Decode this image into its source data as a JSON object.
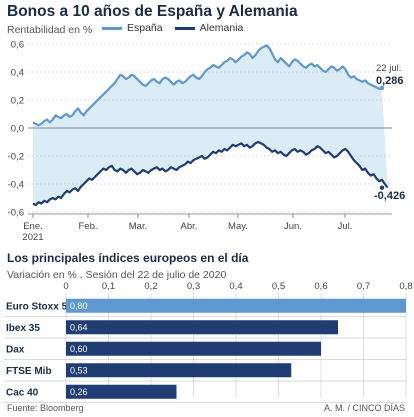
{
  "source": "Fuente: Bloomberg",
  "credit": "A. M. / CINCO DÍAS",
  "colors": {
    "espana": "#5f97d1",
    "alemania": "#1f3d73",
    "area": "#dcecf6",
    "bar_light": "#5f97d1",
    "bar_dark": "#1f3d73"
  },
  "chart_data": [
    {
      "type": "line",
      "title": "Bonos a 10 años de España y Alemania",
      "ylabel": "Rentabilidad en %",
      "ylim": [
        -0.6,
        0.6
      ],
      "yticks": [
        -0.6,
        -0.4,
        -0.2,
        0.0,
        0.2,
        0.4,
        0.6
      ],
      "ytick_labels": [
        "-0,6",
        "-0,4",
        "-0,2",
        "0,0",
        "0,2",
        "0,4",
        "0,6"
      ],
      "x_tick_labels": [
        "Ene.",
        "Feb.",
        "Mar.",
        "Abr.",
        "May.",
        "Jun.",
        "Jul."
      ],
      "x_year_label": "2021",
      "end_date_label": "22 jul.",
      "end_value_labels": {
        "espana": "0,286",
        "alemania": "-0,426"
      },
      "series": [
        {
          "name": "España",
          "values": [
            0.04,
            0.03,
            0.02,
            0.03,
            0.05,
            0.06,
            0.04,
            0.06,
            0.09,
            0.08,
            0.07,
            0.09,
            0.1,
            0.08,
            0.09,
            0.12,
            0.14,
            0.11,
            0.09,
            0.12,
            0.14,
            0.16,
            0.18,
            0.2,
            0.22,
            0.24,
            0.26,
            0.28,
            0.3,
            0.32,
            0.35,
            0.38,
            0.37,
            0.35,
            0.36,
            0.38,
            0.37,
            0.35,
            0.33,
            0.31,
            0.3,
            0.32,
            0.34,
            0.35,
            0.33,
            0.32,
            0.35,
            0.36,
            0.35,
            0.33,
            0.31,
            0.33,
            0.34,
            0.32,
            0.33,
            0.35,
            0.37,
            0.38,
            0.36,
            0.35,
            0.37,
            0.4,
            0.42,
            0.43,
            0.45,
            0.44,
            0.43,
            0.45,
            0.47,
            0.48,
            0.5,
            0.49,
            0.47,
            0.49,
            0.51,
            0.52,
            0.54,
            0.53,
            0.5,
            0.52,
            0.55,
            0.57,
            0.58,
            0.59,
            0.57,
            0.53,
            0.49,
            0.47,
            0.5,
            0.48,
            0.46,
            0.44,
            0.47,
            0.49,
            0.48,
            0.46,
            0.44,
            0.43,
            0.45,
            0.46,
            0.44,
            0.45,
            0.43,
            0.41,
            0.4,
            0.42,
            0.44,
            0.43,
            0.41,
            0.42,
            0.44,
            0.42,
            0.38,
            0.36,
            0.37,
            0.35,
            0.34,
            0.33,
            0.34,
            0.32,
            0.31,
            0.3,
            0.29,
            0.28,
            0.286
          ]
        },
        {
          "name": "Alemania",
          "values": [
            -0.54,
            -0.55,
            -0.53,
            -0.54,
            -0.52,
            -0.53,
            -0.51,
            -0.5,
            -0.51,
            -0.49,
            -0.5,
            -0.47,
            -0.45,
            -0.46,
            -0.44,
            -0.43,
            -0.45,
            -0.42,
            -0.4,
            -0.38,
            -0.36,
            -0.37,
            -0.35,
            -0.33,
            -0.31,
            -0.29,
            -0.3,
            -0.28,
            -0.27,
            -0.3,
            -0.31,
            -0.29,
            -0.3,
            -0.32,
            -0.3,
            -0.29,
            -0.31,
            -0.33,
            -0.32,
            -0.3,
            -0.31,
            -0.32,
            -0.3,
            -0.29,
            -0.28,
            -0.3,
            -0.29,
            -0.31,
            -0.3,
            -0.28,
            -0.29,
            -0.3,
            -0.28,
            -0.27,
            -0.26,
            -0.24,
            -0.25,
            -0.23,
            -0.22,
            -0.21,
            -0.2,
            -0.22,
            -0.21,
            -0.19,
            -0.17,
            -0.18,
            -0.16,
            -0.17,
            -0.15,
            -0.16,
            -0.14,
            -0.12,
            -0.13,
            -0.12,
            -0.11,
            -0.13,
            -0.12,
            -0.14,
            -0.13,
            -0.11,
            -0.1,
            -0.11,
            -0.12,
            -0.14,
            -0.15,
            -0.17,
            -0.16,
            -0.18,
            -0.17,
            -0.19,
            -0.2,
            -0.18,
            -0.16,
            -0.15,
            -0.17,
            -0.16,
            -0.17,
            -0.19,
            -0.18,
            -0.16,
            -0.15,
            -0.13,
            -0.14,
            -0.16,
            -0.18,
            -0.17,
            -0.19,
            -0.21,
            -0.2,
            -0.18,
            -0.16,
            -0.15,
            -0.17,
            -0.2,
            -0.23,
            -0.25,
            -0.27,
            -0.3,
            -0.29,
            -0.32,
            -0.34,
            -0.33,
            -0.36,
            -0.38,
            -0.37,
            -0.4,
            -0.426
          ]
        }
      ]
    },
    {
      "type": "bar",
      "orientation": "horizontal",
      "title": "Los principales índices europeos en el día",
      "subtitle": "Variación en % . Sesión del 22 de julio de 2020",
      "xlim": [
        0,
        0.8
      ],
      "xticks": [
        0,
        0.1,
        0.2,
        0.3,
        0.4,
        0.5,
        0.6,
        0.7,
        0.8
      ],
      "xtick_labels": [
        "0",
        "0,1",
        "0,2",
        "0,3",
        "0,4",
        "0,5",
        "0,6",
        "0,7",
        "0,8"
      ],
      "categories": [
        "Euro Stoxx 50",
        "Ibex 35",
        "Dax",
        "FTSE Mib",
        "Cac 40"
      ],
      "values": [
        0.8,
        0.64,
        0.6,
        0.53,
        0.26
      ],
      "value_labels": [
        "0,80",
        "0,64",
        "0,60",
        "0,53",
        "0,26"
      ]
    }
  ]
}
